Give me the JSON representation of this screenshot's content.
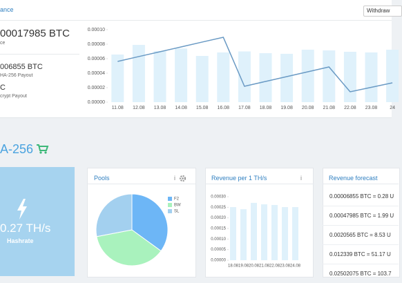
{
  "header": {
    "title": "ance",
    "button": "Withdraw"
  },
  "balance": {
    "total": "00017985 BTC",
    "total_label": "ce",
    "items": [
      {
        "amount": "006855 BTC",
        "label": "HA-256 Payout"
      },
      {
        "amount": "C",
        "label": "crypt Payout"
      }
    ]
  },
  "balance_chart": {
    "type": "bar_line",
    "categories": [
      "11.08",
      "12.08",
      "13.08",
      "14.08",
      "15.08",
      "16.08",
      "17.08",
      "18.08",
      "19.08",
      "20.08",
      "21.08",
      "22.08",
      "23.08",
      "24"
    ],
    "bars": {
      "color": "#dff1fb",
      "values": [
        6.57e-05,
        7.9e-05,
        7.05e-05,
        7.4e-05,
        6.38e-05,
        6.86e-05,
        7e-05,
        6.76e-05,
        6.67e-05,
        7.24e-05,
        7.14e-05,
        6.95e-05,
        6.86e-05,
        7.24e-05
      ]
    },
    "line": {
      "color": "#6a9ac4",
      "values": [
        5.62e-05,
        6.29e-05,
        6.95e-05,
        7.62e-05,
        8.29e-05,
        8.95e-05,
        2.19e-05,
        2.86e-05,
        3.52e-05,
        4.19e-05,
        4.86e-05,
        1.43e-05,
        2.05e-05,
        2.67e-05
      ]
    },
    "ylim": [
      0,
      0.0001
    ],
    "yticks": [
      {
        "value": 0,
        "label": "0.00000"
      },
      {
        "value": 2e-05,
        "label": "0.00002"
      },
      {
        "value": 4e-05,
        "label": "0.00004"
      },
      {
        "value": 6e-05,
        "label": "0.00006"
      },
      {
        "value": 8e-05,
        "label": "0.00008"
      },
      {
        "value": 0.0001,
        "label": "0.00010"
      }
    ]
  },
  "section": {
    "title": "A-256"
  },
  "hashrate": {
    "value": "0.27 TH/s",
    "label": "Hashrate"
  },
  "pools": {
    "title": "Pools",
    "chart": {
      "type": "pie",
      "categories": [
        "F2",
        "BW",
        "SL"
      ],
      "values": [
        35,
        37,
        28
      ],
      "colors": [
        "#6db6f6",
        "#a9f2bd",
        "#a3d0ef"
      ]
    }
  },
  "revenue": {
    "title": "Revenue per 1 TH/s",
    "chart": {
      "type": "bar",
      "categories": [
        "18.08",
        "19.08",
        "20.08",
        "21.08",
        "22.08",
        "23.08",
        "24.08"
      ],
      "values": [
        0.000251,
        0.000241,
        0.000271,
        0.000264,
        0.000261,
        0.000251,
        0.000251
      ],
      "color": "#dff1fb",
      "ylim": [
        0,
        0.0003
      ],
      "yticks": [
        {
          "value": 0,
          "label": "0.00000"
        },
        {
          "value": 5e-05,
          "label": "0.00005"
        },
        {
          "value": 0.0001,
          "label": "0.00010"
        },
        {
          "value": 0.00015,
          "label": "0.00015"
        },
        {
          "value": 0.0002,
          "label": "0.00020"
        },
        {
          "value": 0.00025,
          "label": "0.00025"
        },
        {
          "value": 0.0003,
          "label": "0.00030"
        }
      ]
    }
  },
  "forecast": {
    "title": "Revenue forecast",
    "rows": [
      "0.00006855 BTC = 0.28 U",
      "0.00047985 BTC = 1.99 U",
      "0.0020565 BTC = 8.53 U",
      "0.012339 BTC = 51.17 U",
      "0.02502075 BTC = 103.7"
    ]
  }
}
